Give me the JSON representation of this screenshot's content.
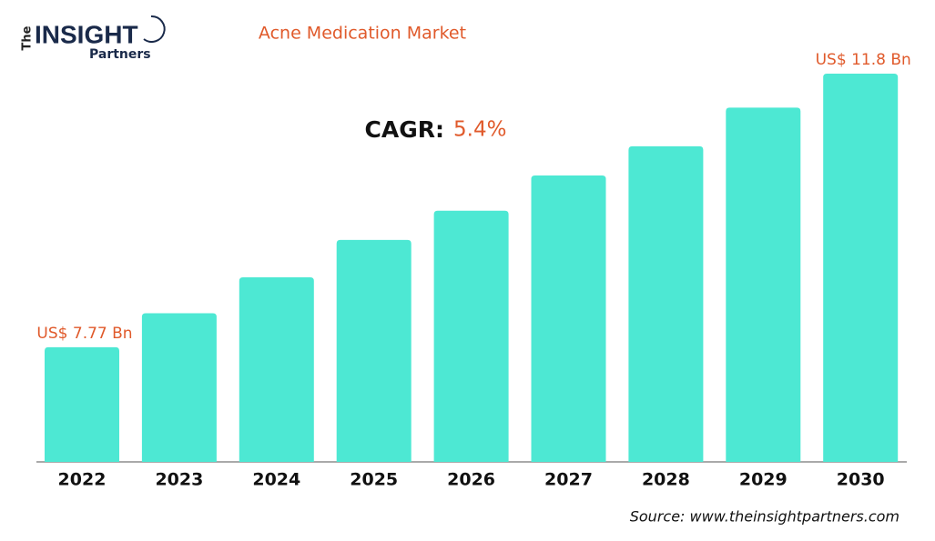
{
  "logo": {
    "the": "The",
    "insight": "INSIGHT",
    "partners": "Partners"
  },
  "chart_data": {
    "type": "bar",
    "title": "Acne Medication Market",
    "categories": [
      "2022",
      "2023",
      "2024",
      "2025",
      "2026",
      "2027",
      "2028",
      "2029",
      "2030"
    ],
    "values": [
      7.77,
      8.27,
      8.8,
      9.35,
      9.78,
      10.3,
      10.73,
      11.3,
      11.8
    ],
    "value_labels": [
      "US$ 7.77 Bn",
      null,
      null,
      null,
      null,
      null,
      null,
      null,
      "US$ 11.8 Bn"
    ],
    "color": "#4de8d3",
    "label_color": "#e05a2b",
    "ylim": [
      6.08,
      11.8
    ],
    "annotations": {
      "cagr_label": "CAGR:",
      "cagr_value": "5.4%"
    },
    "source": "Source: www.theinsightpartners.com"
  }
}
